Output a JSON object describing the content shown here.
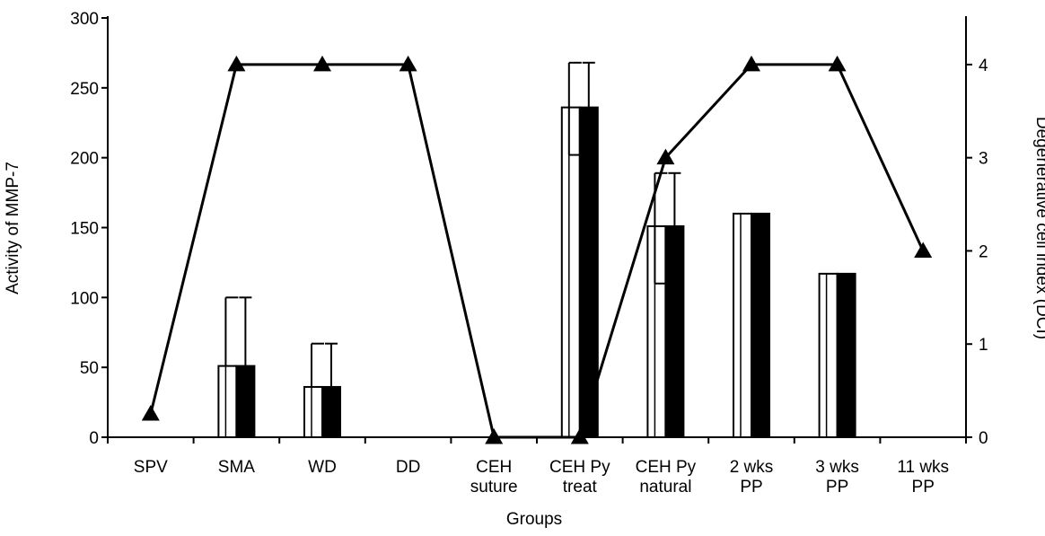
{
  "chart_data": {
    "type": "bar",
    "title": "",
    "xlabel": "Groups",
    "ylabel": "Activity of MMP-7",
    "y2label": "Degenerative cell index (DCI)",
    "ylim": [
      0,
      300
    ],
    "y2lim": [
      0,
      4.5
    ],
    "y_ticks": [
      "0",
      "50",
      "100",
      "150",
      "200",
      "250",
      "300"
    ],
    "y2_ticks": [
      "0",
      "1",
      "2",
      "3",
      "4"
    ],
    "categories": [
      [
        "SPV"
      ],
      [
        "SMA"
      ],
      [
        "WD"
      ],
      [
        "DD"
      ],
      [
        "CEH",
        "suture"
      ],
      [
        "CEH Py",
        "treat"
      ],
      [
        "CEH Py",
        "natural"
      ],
      [
        "2 wks",
        "PP"
      ],
      [
        "3 wks",
        "PP"
      ],
      [
        "11 wks",
        "PP"
      ]
    ],
    "series": [
      {
        "style": "open-bar",
        "color": "#ffffff",
        "values": [
          0,
          51,
          36,
          0,
          0,
          236,
          151,
          160,
          117,
          0
        ],
        "error_upper": [
          null,
          100,
          67,
          null,
          null,
          268,
          189,
          null,
          null,
          null
        ],
        "error_lower": [
          null,
          null,
          null,
          null,
          null,
          202,
          110,
          null,
          null,
          null
        ]
      },
      {
        "style": "filled-bar",
        "color": "#000000",
        "values": [
          0,
          51,
          36,
          0,
          0,
          236,
          151,
          160,
          117,
          0
        ],
        "error_upper": [
          null,
          100,
          67,
          null,
          null,
          268,
          189,
          null,
          null,
          null
        ]
      },
      {
        "style": "line-triangle",
        "axis": "right",
        "color": "#000000",
        "values": [
          0.25,
          4,
          4,
          4,
          0,
          0,
          3,
          4,
          4,
          2
        ]
      }
    ],
    "grid": false,
    "legend": "none"
  }
}
